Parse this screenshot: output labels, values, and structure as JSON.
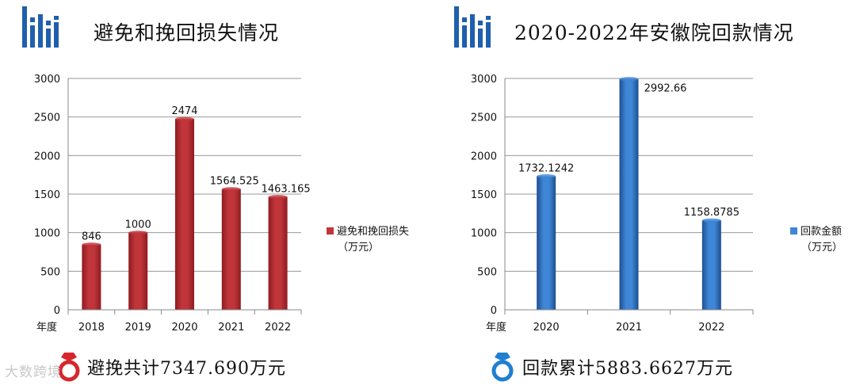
{
  "colors": {
    "accent_blue": "#1f5fae",
    "left_bar": "#c0353a",
    "left_bar_dark": "#8e1b20",
    "right_bar": "#3f86d6",
    "right_bar_dark": "#1d4f90",
    "ring_red": "#d6262c",
    "ring_blue": "#1f7fd1"
  },
  "left": {
    "title": "避免和挽回损失情况",
    "legend": {
      "line1": "避免和挽回损失",
      "line2": "（万元）"
    },
    "summary": "避挽共计7347.690万元",
    "summary_icon": "ring-icon"
  },
  "right": {
    "title": "2020-2022年安徽院回款情况",
    "legend": {
      "line1": "回款金额",
      "line2": "（万元）"
    },
    "summary": "回款累计5883.6627万元",
    "summary_icon": "ring-icon"
  },
  "watermark": "大数跨境",
  "chart_data": [
    {
      "type": "bar",
      "xlabel": "年度",
      "ylabel": "",
      "ylim": [
        0,
        3000
      ],
      "yticks": [
        0,
        500,
        1000,
        1500,
        2000,
        2500,
        3000
      ],
      "categories": [
        "2018",
        "2019",
        "2020",
        "2021",
        "2022"
      ],
      "series": [
        {
          "name": "避免和挽回损失（万元）",
          "values": [
            846,
            1000,
            2474,
            1564.525,
            1463.165
          ]
        }
      ],
      "data_labels": [
        "846",
        "1000",
        "2474",
        "1564.525",
        "1463.165"
      ],
      "grid": true,
      "legend_position": "right"
    },
    {
      "type": "bar",
      "xlabel": "年度",
      "ylabel": "",
      "ylim": [
        0,
        3000
      ],
      "yticks": [
        0,
        500,
        1000,
        1500,
        2000,
        2500,
        3000
      ],
      "categories": [
        "2020",
        "2021",
        "2022"
      ],
      "series": [
        {
          "name": "回款金额（万元）",
          "values": [
            1732.1242,
            2992.66,
            1158.8785
          ]
        }
      ],
      "data_labels": [
        "1732.1242",
        "2992.66",
        "1158.8785"
      ],
      "grid": true,
      "legend_position": "right"
    }
  ]
}
